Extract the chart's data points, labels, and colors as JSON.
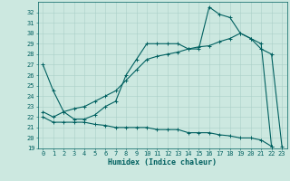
{
  "xlabel": "Humidex (Indice chaleur)",
  "bg_color": "#cce8e0",
  "grid_color": "#aacfc8",
  "line_color": "#006060",
  "line1_y": [
    27.0,
    24.5,
    22.5,
    21.8,
    21.8,
    22.2,
    23.0,
    23.5,
    26.0,
    27.5,
    29.0,
    29.0,
    29.0,
    29.0,
    28.5,
    28.5,
    32.5,
    31.8,
    31.5,
    30.0,
    29.5,
    28.5,
    28.0,
    19.2
  ],
  "line2_y": [
    22.5,
    22.0,
    22.5,
    22.8,
    23.0,
    23.5,
    24.0,
    24.5,
    25.5,
    26.5,
    27.5,
    27.8,
    28.0,
    28.2,
    28.5,
    28.7,
    28.8,
    29.2,
    29.5,
    30.0,
    29.5,
    29.0,
    19.2,
    null
  ],
  "line3_y": [
    22.0,
    21.5,
    21.5,
    21.5,
    21.5,
    21.3,
    21.2,
    21.0,
    21.0,
    21.0,
    21.0,
    20.8,
    20.8,
    20.8,
    20.5,
    20.5,
    20.5,
    20.3,
    20.2,
    20.0,
    20.0,
    19.8,
    19.2,
    null
  ],
  "ylim": [
    19,
    33
  ],
  "xlim": [
    -0.5,
    23.5
  ],
  "yticks": [
    19,
    20,
    21,
    22,
    23,
    24,
    25,
    26,
    27,
    28,
    29,
    30,
    31,
    32
  ],
  "xticks": [
    0,
    1,
    2,
    3,
    4,
    5,
    6,
    7,
    8,
    9,
    10,
    11,
    12,
    13,
    14,
    15,
    16,
    17,
    18,
    19,
    20,
    21,
    22,
    23
  ],
  "markersize": 2.5,
  "linewidth": 0.8,
  "tick_fontsize": 5.0,
  "xlabel_fontsize": 6.0
}
